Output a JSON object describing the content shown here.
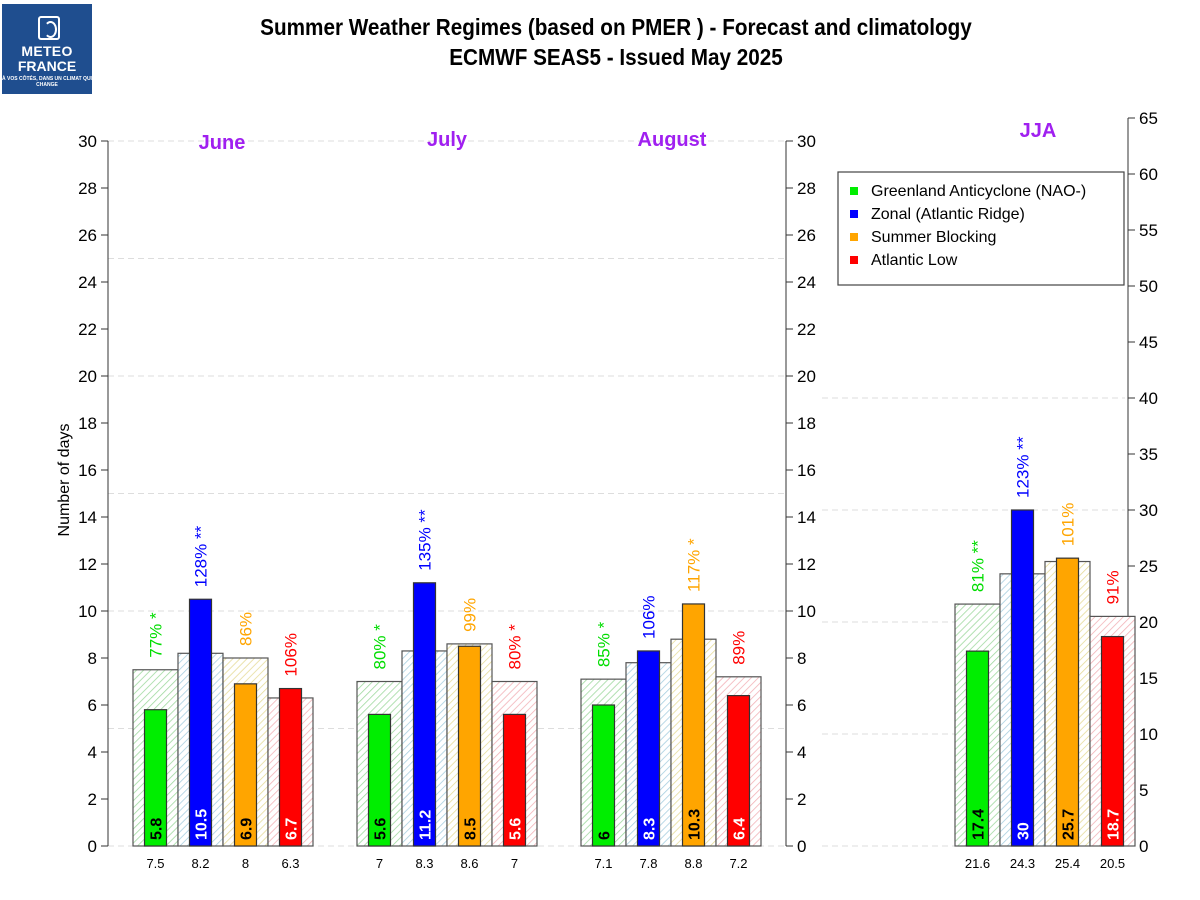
{
  "logo": {
    "line1": "METEO",
    "line2": "FRANCE",
    "tagline": "À VOS CÔTÉS, DANS UN CLIMAT QUI CHANGE"
  },
  "chart_data": {
    "type": "bar",
    "title": "Summer Weather Regimes (based on PMER )  -  Forecast and climatology",
    "subtitle": "ECMWF SEAS5   -   Issued May 2025",
    "ylabel": "Number of days",
    "ylim": [
      0,
      30
    ],
    "yticks": [
      0,
      2,
      4,
      6,
      8,
      10,
      12,
      14,
      16,
      18,
      20,
      22,
      24,
      26,
      28,
      30
    ],
    "jja_ylim": [
      0,
      65
    ],
    "jja_yticks": [
      0,
      5,
      10,
      15,
      20,
      25,
      30,
      35,
      40,
      45,
      50,
      55,
      60,
      65
    ],
    "gridlines": "dashed",
    "legend_position": "top-right",
    "series": [
      {
        "name": "Greenland Anticyclone (NAO-)",
        "color": "#00ee00",
        "hatch": "#9fd99f",
        "value_text_color": "#000000"
      },
      {
        "name": "Zonal (Atlantic Ridge)",
        "color": "#0000ff",
        "hatch": "#a8cfe0",
        "value_text_color": "#ffffff"
      },
      {
        "name": "Summer Blocking",
        "color": "#ffa500",
        "hatch": "#e6dc9a",
        "value_text_color": "#000000"
      },
      {
        "name": "Atlantic Low",
        "color": "#ff0000",
        "hatch": "#f2b3b8",
        "value_text_color": "#ffffff"
      }
    ],
    "groups": [
      {
        "label": "June",
        "axis": "left",
        "forecast": [
          5.8,
          10.5,
          6.9,
          6.7
        ],
        "climatology": [
          7.5,
          8.2,
          8,
          6.3
        ],
        "forecast_labels": [
          "5.8",
          "10.5",
          "6.9",
          "6.7"
        ],
        "climatology_labels": [
          "7.5",
          "8.2",
          "8",
          "6.3"
        ],
        "percent": [
          "77%",
          "128%",
          "86%",
          "106%"
        ],
        "significance": [
          "*",
          "**",
          "",
          ""
        ]
      },
      {
        "label": "July",
        "axis": "left",
        "forecast": [
          5.6,
          11.2,
          8.5,
          5.6
        ],
        "climatology": [
          7,
          8.3,
          8.6,
          7
        ],
        "forecast_labels": [
          "5.6",
          "11.2",
          "8.5",
          "5.6"
        ],
        "climatology_labels": [
          "7",
          "8.3",
          "8.6",
          "7"
        ],
        "percent": [
          "80%",
          "135%",
          "99%",
          "80%"
        ],
        "significance": [
          "*",
          "**",
          "",
          "*"
        ]
      },
      {
        "label": "August",
        "axis": "left",
        "forecast": [
          6,
          8.3,
          10.3,
          6.4
        ],
        "climatology": [
          7.1,
          7.8,
          8.8,
          7.2
        ],
        "forecast_labels": [
          "6",
          "8.3",
          "10.3",
          "6.4"
        ],
        "climatology_labels": [
          "7.1",
          "7.8",
          "8.8",
          "7.2"
        ],
        "percent": [
          "85%",
          "106%",
          "117%",
          "89%"
        ],
        "significance": [
          "*",
          "",
          "*",
          ""
        ]
      },
      {
        "label": "JJA",
        "axis": "right",
        "forecast": [
          17.4,
          30,
          25.7,
          18.7
        ],
        "climatology": [
          21.6,
          24.3,
          25.4,
          20.5
        ],
        "forecast_labels": [
          "17.4",
          "30",
          "25.7",
          "18.7"
        ],
        "climatology_labels": [
          "21.6",
          "24.3",
          "25.4",
          "20.5"
        ],
        "percent": [
          "81%",
          "123%",
          "101%",
          "91%"
        ],
        "significance": [
          "**",
          "**",
          "",
          ""
        ]
      }
    ]
  }
}
